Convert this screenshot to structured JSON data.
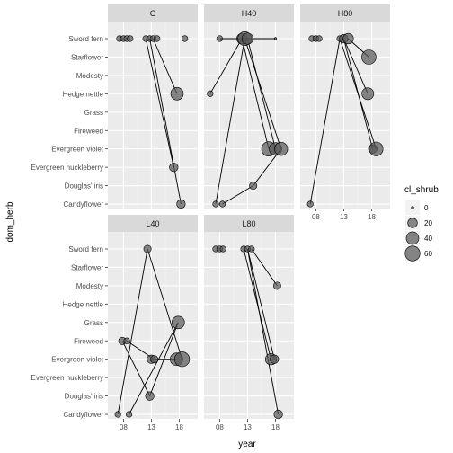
{
  "chart_data": {
    "type": "scatter",
    "xlabel": "year",
    "ylabel": "dom_herb",
    "x_ticks": [
      "08",
      "13",
      "18"
    ],
    "x_tick_values": [
      8,
      13,
      18
    ],
    "xlim": [
      5.2,
      21.3
    ],
    "categories": [
      "Sword fern",
      "Starflower",
      "Modesty",
      "Hedge nettle",
      "Grass",
      "Fireweed",
      "Evergreen violet",
      "Evergreen huckleberry",
      "Douglas' iris",
      "Candyflower"
    ],
    "grid": true,
    "point_color": "#555555",
    "line_color": "#000000",
    "legend": {
      "title": "cl_shrub",
      "placement": "right",
      "entries": [
        {
          "label": "0",
          "value": 0
        },
        {
          "label": "20",
          "value": 20
        },
        {
          "label": "40",
          "value": 40
        },
        {
          "label": "60",
          "value": 60
        }
      ]
    },
    "panels": [
      {
        "name": "C",
        "points": [
          {
            "year": 7.3,
            "herb": "Sword fern",
            "shrub": 5
          },
          {
            "year": 8.0,
            "herb": "Sword fern",
            "shrub": 5
          },
          {
            "year": 8.6,
            "herb": "Sword fern",
            "shrub": 5
          },
          {
            "year": 9.2,
            "herb": "Sword fern",
            "shrub": 5
          },
          {
            "year": 12.0,
            "herb": "Sword fern",
            "shrub": 5
          },
          {
            "year": 12.7,
            "herb": "Sword fern",
            "shrub": 5
          },
          {
            "year": 13.3,
            "herb": "Sword fern",
            "shrub": 5
          },
          {
            "year": 14.0,
            "herb": "Sword fern",
            "shrub": 5
          },
          {
            "year": 19.0,
            "herb": "Sword fern",
            "shrub": 5
          },
          {
            "year": 17.6,
            "herb": "Hedge nettle",
            "shrub": 40
          },
          {
            "year": 17.0,
            "herb": "Evergreen huckleberry",
            "shrub": 15
          },
          {
            "year": 18.3,
            "herb": "Candyflower",
            "shrub": 15
          }
        ],
        "paths": [
          [
            {
              "year": 12.0,
              "herb": "Sword fern"
            },
            {
              "year": 17.0,
              "herb": "Evergreen huckleberry"
            }
          ],
          [
            {
              "year": 12.7,
              "herb": "Sword fern"
            },
            {
              "year": 18.3,
              "herb": "Candyflower"
            }
          ],
          [
            {
              "year": 13.3,
              "herb": "Sword fern"
            },
            {
              "year": 17.6,
              "herb": "Hedge nettle"
            }
          ]
        ]
      },
      {
        "name": "H40",
        "points": [
          {
            "year": 8.0,
            "herb": "Sword fern",
            "shrub": 5
          },
          {
            "year": 12.0,
            "herb": "Sword fern",
            "shrub": 25
          },
          {
            "year": 12.5,
            "herb": "Sword fern",
            "shrub": 50
          },
          {
            "year": 13.0,
            "herb": "Sword fern",
            "shrub": 30
          },
          {
            "year": 18.0,
            "herb": "Sword fern",
            "shrub": 0
          },
          {
            "year": 6.3,
            "herb": "Hedge nettle",
            "shrub": 5
          },
          {
            "year": 16.8,
            "herb": "Evergreen violet",
            "shrub": 55
          },
          {
            "year": 18.0,
            "herb": "Evergreen violet",
            "shrub": 40
          },
          {
            "year": 19.0,
            "herb": "Evergreen violet",
            "shrub": 45
          },
          {
            "year": 14.0,
            "herb": "Douglas' iris",
            "shrub": 10
          },
          {
            "year": 7.3,
            "herb": "Candyflower",
            "shrub": 5
          },
          {
            "year": 8.5,
            "herb": "Candyflower",
            "shrub": 5
          }
        ],
        "paths": [
          [
            {
              "year": 6.3,
              "herb": "Hedge nettle"
            },
            {
              "year": 12.0,
              "herb": "Sword fern"
            },
            {
              "year": 16.8,
              "herb": "Evergreen violet"
            }
          ],
          [
            {
              "year": 7.3,
              "herb": "Candyflower"
            },
            {
              "year": 12.5,
              "herb": "Sword fern"
            },
            {
              "year": 19.0,
              "herb": "Evergreen violet"
            }
          ],
          [
            {
              "year": 8.5,
              "herb": "Candyflower"
            },
            {
              "year": 14.0,
              "herb": "Douglas' iris"
            },
            {
              "year": 19.0,
              "herb": "Evergreen violet"
            }
          ],
          [
            {
              "year": 13.0,
              "herb": "Sword fern"
            },
            {
              "year": 18.0,
              "herb": "Evergreen violet"
            }
          ],
          [
            {
              "year": 8.0,
              "herb": "Sword fern"
            },
            {
              "year": 18.0,
              "herb": "Sword fern"
            }
          ]
        ]
      },
      {
        "name": "H80",
        "points": [
          {
            "year": 7.3,
            "herb": "Sword fern",
            "shrub": 5
          },
          {
            "year": 8.0,
            "herb": "Sword fern",
            "shrub": 5
          },
          {
            "year": 8.6,
            "herb": "Sword fern",
            "shrub": 5
          },
          {
            "year": 12.3,
            "herb": "Sword fern",
            "shrub": 5
          },
          {
            "year": 13.0,
            "herb": "Sword fern",
            "shrub": 15
          },
          {
            "year": 13.8,
            "herb": "Sword fern",
            "shrub": 25
          },
          {
            "year": 17.5,
            "herb": "Starflower",
            "shrub": 55
          },
          {
            "year": 17.3,
            "herb": "Hedge nettle",
            "shrub": 35
          },
          {
            "year": 18.2,
            "herb": "Evergreen violet",
            "shrub": 15
          },
          {
            "year": 18.8,
            "herb": "Evergreen violet",
            "shrub": 50
          },
          {
            "year": 7.0,
            "herb": "Candyflower",
            "shrub": 5
          }
        ],
        "paths": [
          [
            {
              "year": 7.0,
              "herb": "Candyflower"
            },
            {
              "year": 12.3,
              "herb": "Sword fern"
            },
            {
              "year": 18.8,
              "herb": "Evergreen violet"
            }
          ],
          [
            {
              "year": 13.0,
              "herb": "Sword fern"
            },
            {
              "year": 17.3,
              "herb": "Hedge nettle"
            }
          ],
          [
            {
              "year": 13.0,
              "herb": "Sword fern"
            },
            {
              "year": 18.2,
              "herb": "Evergreen violet"
            }
          ],
          [
            {
              "year": 13.8,
              "herb": "Sword fern"
            },
            {
              "year": 17.5,
              "herb": "Starflower"
            }
          ]
        ]
      },
      {
        "name": "L40",
        "points": [
          {
            "year": 12.3,
            "herb": "Sword fern",
            "shrub": 10
          },
          {
            "year": 17.8,
            "herb": "Grass",
            "shrub": 40
          },
          {
            "year": 7.8,
            "herb": "Fireweed",
            "shrub": 10
          },
          {
            "year": 8.6,
            "herb": "Fireweed",
            "shrub": 5
          },
          {
            "year": 13.0,
            "herb": "Evergreen violet",
            "shrub": 15
          },
          {
            "year": 13.5,
            "herb": "Evergreen violet",
            "shrub": 10
          },
          {
            "year": 17.5,
            "herb": "Evergreen violet",
            "shrub": 40
          },
          {
            "year": 18.5,
            "herb": "Evergreen violet",
            "shrub": 60
          },
          {
            "year": 12.7,
            "herb": "Douglas' iris",
            "shrub": 15
          },
          {
            "year": 7.0,
            "herb": "Candyflower",
            "shrub": 5
          },
          {
            "year": 9.0,
            "herb": "Candyflower",
            "shrub": 5
          }
        ],
        "paths": [
          [
            {
              "year": 7.0,
              "herb": "Candyflower"
            },
            {
              "year": 12.3,
              "herb": "Sword fern"
            },
            {
              "year": 18.5,
              "herb": "Evergreen violet"
            }
          ],
          [
            {
              "year": 7.8,
              "herb": "Fireweed"
            },
            {
              "year": 12.7,
              "herb": "Douglas' iris"
            },
            {
              "year": 17.8,
              "herb": "Grass"
            }
          ],
          [
            {
              "year": 9.0,
              "herb": "Candyflower"
            },
            {
              "year": 17.8,
              "herb": "Grass"
            }
          ],
          [
            {
              "year": 8.6,
              "herb": "Fireweed"
            },
            {
              "year": 13.5,
              "herb": "Evergreen violet"
            }
          ],
          [
            {
              "year": 13.0,
              "herb": "Evergreen violet"
            },
            {
              "year": 17.5,
              "herb": "Evergreen violet"
            }
          ]
        ]
      },
      {
        "name": "L80",
        "points": [
          {
            "year": 7.3,
            "herb": "Sword fern",
            "shrub": 5
          },
          {
            "year": 8.0,
            "herb": "Sword fern",
            "shrub": 5
          },
          {
            "year": 8.6,
            "herb": "Sword fern",
            "shrub": 5
          },
          {
            "year": 12.3,
            "herb": "Sword fern",
            "shrub": 5
          },
          {
            "year": 13.0,
            "herb": "Sword fern",
            "shrub": 5
          },
          {
            "year": 13.7,
            "herb": "Sword fern",
            "shrub": 5
          },
          {
            "year": 18.3,
            "herb": "Modesty",
            "shrub": 10
          },
          {
            "year": 17.2,
            "herb": "Evergreen violet",
            "shrub": 30
          },
          {
            "year": 17.8,
            "herb": "Evergreen violet",
            "shrub": 15
          },
          {
            "year": 18.5,
            "herb": "Candyflower",
            "shrub": 15
          }
        ],
        "paths": [
          [
            {
              "year": 12.3,
              "herb": "Sword fern"
            },
            {
              "year": 17.2,
              "herb": "Evergreen violet"
            }
          ],
          [
            {
              "year": 13.0,
              "herb": "Sword fern"
            },
            {
              "year": 17.8,
              "herb": "Evergreen violet"
            }
          ],
          [
            {
              "year": 13.0,
              "herb": "Sword fern"
            },
            {
              "year": 18.5,
              "herb": "Candyflower"
            }
          ],
          [
            {
              "year": 13.7,
              "herb": "Sword fern"
            },
            {
              "year": 18.3,
              "herb": "Modesty"
            }
          ]
        ]
      }
    ]
  }
}
